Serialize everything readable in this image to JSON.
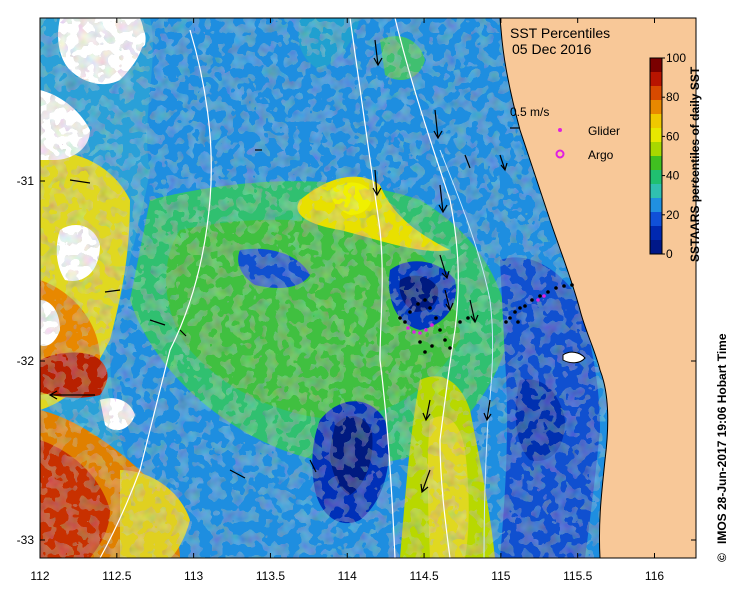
{
  "title": {
    "line1": "SST Percentiles",
    "line2": "05 Dec 2016"
  },
  "colorbar": {
    "label": "SSTAARS percentiles of daily SST",
    "ticks": [
      "100",
      "80",
      "60",
      "40",
      "20",
      "0"
    ],
    "colors": [
      "#7a0000",
      "#b81400",
      "#d84a00",
      "#e88800",
      "#f0c800",
      "#e8e800",
      "#a8d800",
      "#40c020",
      "#20c070",
      "#30c0b0",
      "#2090e0",
      "#1050d8",
      "#0028b0",
      "#001888"
    ]
  },
  "legend": {
    "velocity_label": "0.5 m/s",
    "glider_label": "Glider",
    "argo_label": "Argo",
    "glider_color": "#e020e0",
    "argo_color": "#e020e0"
  },
  "axes": {
    "x_ticks": [
      "112",
      "112.5",
      "113",
      "113.5",
      "114",
      "114.5",
      "115",
      "115.5",
      "116"
    ],
    "y_ticks": [
      "-31",
      "-32",
      "-33"
    ]
  },
  "credit": "IMOS 28-Jun-2017 19:06 Hobart Time",
  "copyright_symbol": "©",
  "colors": {
    "land": "#f8c898",
    "no_data": "#ffffff"
  }
}
